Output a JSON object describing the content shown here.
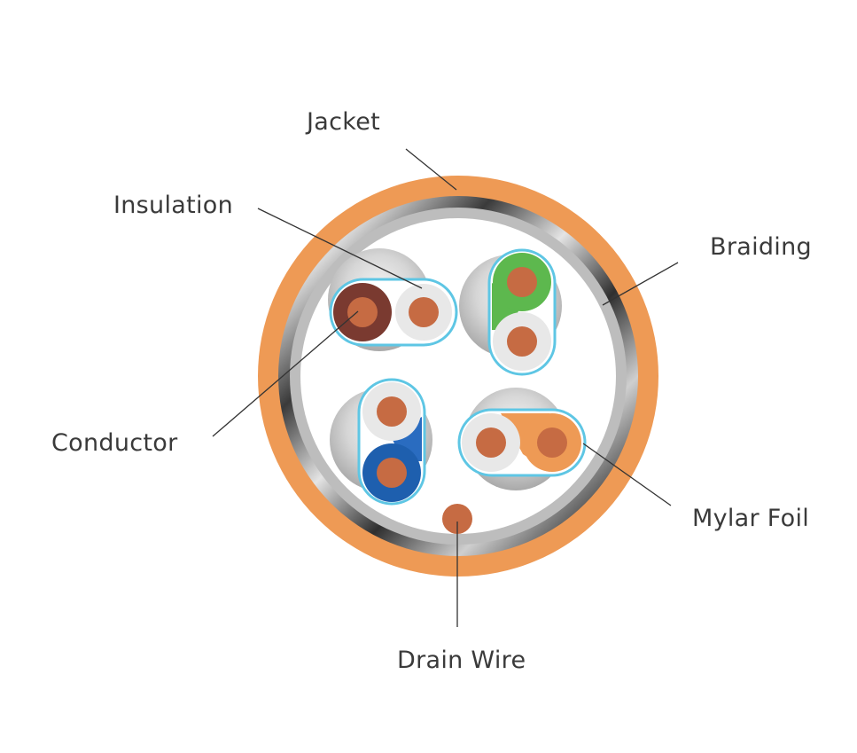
{
  "labels": {
    "jacket": "Jacket",
    "insulation": "Insulation",
    "braiding": "Braiding",
    "conductor": "Conductor",
    "mylar_foil": "Mylar Foil",
    "drain_wire": "Drain Wire"
  },
  "colors": {
    "jacket": "#ee9a55",
    "copper": "#c66b43",
    "insulation_white": "#e8e8e8",
    "foil_outline": "#5ec6e4",
    "brown": "#7a3a30",
    "green": "#5db84e",
    "blue": "#1e5fae",
    "orange": "#ee9a55"
  }
}
